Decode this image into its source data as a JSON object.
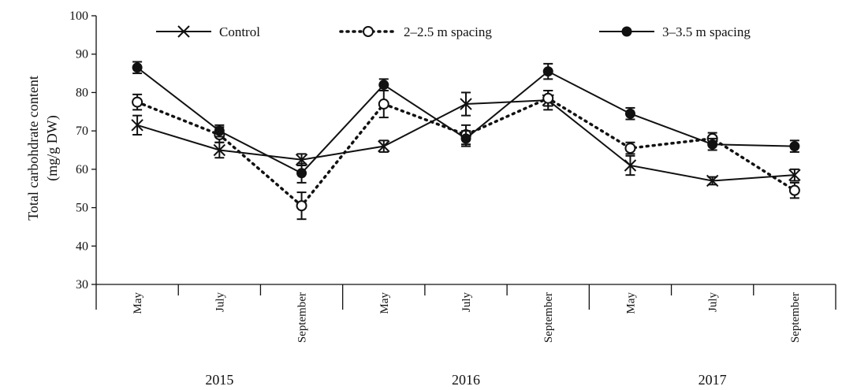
{
  "chart_data": {
    "type": "line",
    "ylabel_line1": "Total carbohdrate content",
    "ylabel_line2": "(mg/g DW)",
    "ylim": [
      30,
      100
    ],
    "yticks": [
      30,
      40,
      50,
      60,
      70,
      80,
      90,
      100
    ],
    "categories": [
      "May",
      "July",
      "September",
      "May",
      "July",
      "September",
      "May",
      "July",
      "September"
    ],
    "groups": [
      "2015",
      "2016",
      "2017"
    ],
    "legend_position": "top",
    "grid": false,
    "series": [
      {
        "name": "Control",
        "marker": "x",
        "line": "solid",
        "values": [
          71.5,
          65.0,
          62.5,
          66.0,
          77.0,
          78.0,
          61.0,
          57.0,
          58.5
        ],
        "errors": [
          2.5,
          2.0,
          1.5,
          1.5,
          3.0,
          2.5,
          2.5,
          1.0,
          1.5
        ]
      },
      {
        "name": "2–2.5 m spacing",
        "marker": "open-circle",
        "line": "dotted",
        "values": [
          77.5,
          69.0,
          50.5,
          77.0,
          69.0,
          78.5,
          65.5,
          68.0,
          54.5
        ],
        "errors": [
          2.0,
          2.0,
          3.5,
          3.5,
          2.5,
          2.0,
          1.5,
          1.5,
          2.0
        ]
      },
      {
        "name": "3–3.5 m spacing",
        "marker": "filled-circle",
        "line": "solid",
        "values": [
          86.5,
          70.0,
          59.0,
          82.0,
          68.0,
          85.5,
          74.5,
          66.5,
          66.0
        ],
        "errors": [
          1.5,
          1.5,
          2.5,
          1.5,
          2.0,
          2.0,
          1.5,
          1.5,
          1.5
        ]
      }
    ]
  }
}
